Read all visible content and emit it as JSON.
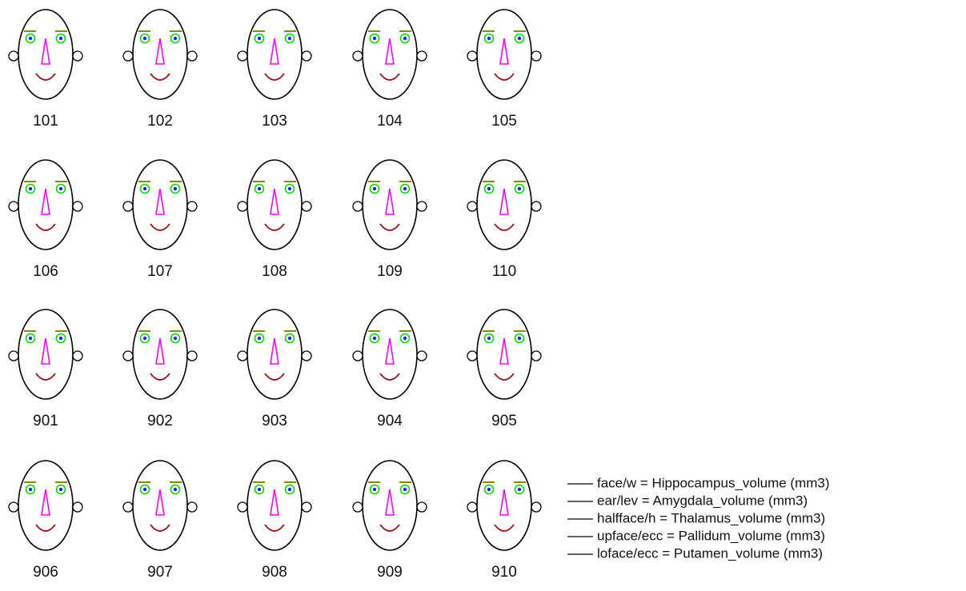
{
  "chart_data": {
    "type": "faces",
    "categories": [
      "101",
      "102",
      "103",
      "104",
      "105",
      "106",
      "107",
      "108",
      "109",
      "110",
      "901",
      "902",
      "903",
      "904",
      "905",
      "906",
      "907",
      "908",
      "909",
      "910"
    ],
    "legend": [
      "face/w = Hippocampus_volume (mm3)",
      "ear/lev = Amygdala_volume (mm3)",
      "halfface/h = Thalamus_volume (mm3)",
      "upface/ecc = Pallidum_volume (mm3)",
      "loface/ecc = Putamen_volume (mm3)"
    ]
  }
}
